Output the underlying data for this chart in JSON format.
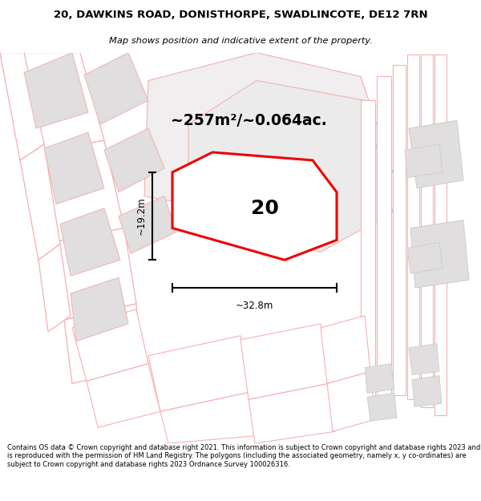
{
  "title_line1": "20, DAWKINS ROAD, DONISTHORPE, SWADLINCOTE, DE12 7RN",
  "title_line2": "Map shows position and indicative extent of the property.",
  "area_text": "~257m²/~0.064ac.",
  "label_number": "20",
  "dim_height": "~19.2m",
  "dim_width": "~32.8m",
  "footer": "Contains OS data © Crown copyright and database right 2021. This information is subject to Crown copyright and database rights 2023 and is reproduced with the permission of HM Land Registry. The polygons (including the associated geometry, namely x, y co-ordinates) are subject to Crown copyright and database rights 2023 Ordnance Survey 100026316.",
  "red_color": "#ee0000",
  "light_red": "#f5b0b0",
  "gray_fill": "#e0dede",
  "white": "#ffffff",
  "figure_width": 6.0,
  "figure_height": 6.25
}
